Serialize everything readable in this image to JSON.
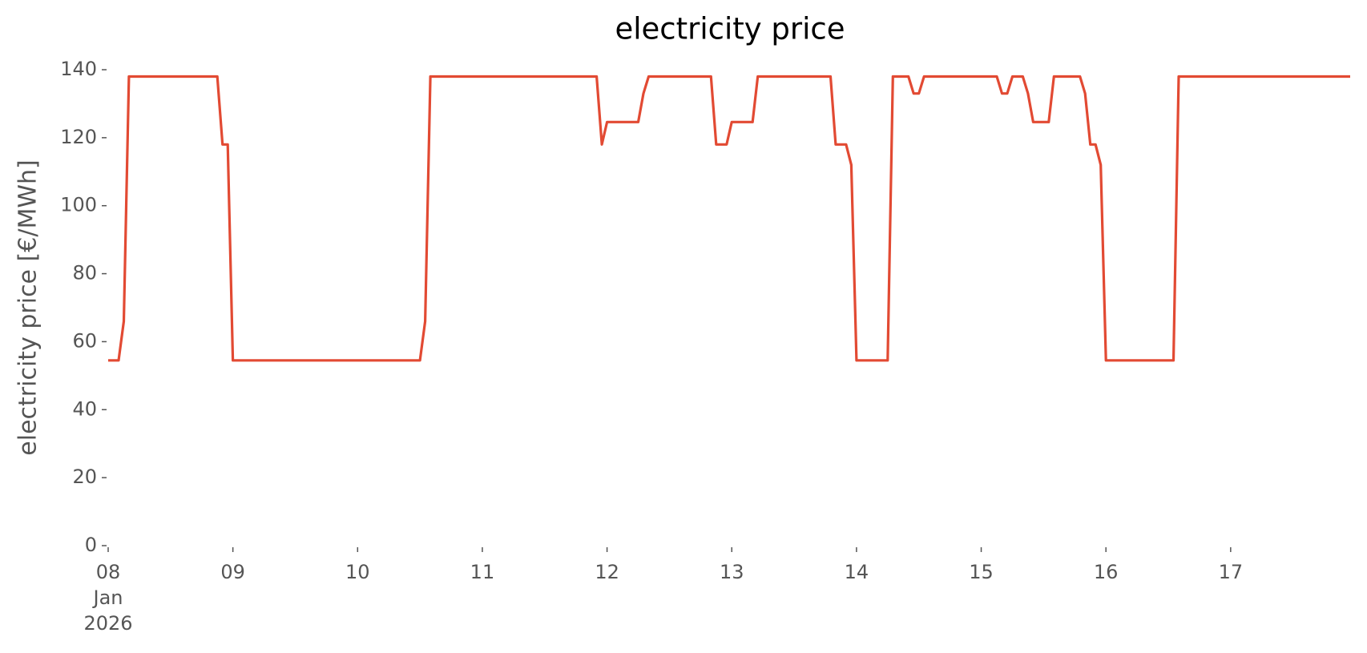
{
  "chart_data": {
    "type": "line",
    "title": "electricity price",
    "ylabel": "electricity price [€/MWh]",
    "x": [
      0,
      2,
      3,
      4,
      21,
      22,
      23,
      24,
      60,
      61,
      62,
      94,
      95,
      96,
      102,
      103,
      104,
      116,
      117,
      119,
      120,
      124,
      125,
      139,
      140,
      142,
      143,
      144,
      150,
      151,
      154,
      155,
      156,
      157,
      171,
      172,
      173,
      174,
      176,
      177,
      178,
      181,
      182,
      187,
      188,
      189,
      190,
      191,
      192,
      205,
      206,
      239
    ],
    "series": [
      {
        "name": "electricity price",
        "color": "#e24a33",
        "values": [
          54.5,
          54.5,
          66,
          138,
          138,
          118,
          118,
          54.5,
          54.5,
          66,
          138,
          138,
          118,
          124.6,
          124.6,
          133,
          138,
          138,
          118,
          118,
          124.6,
          124.6,
          138,
          138,
          118,
          118,
          112,
          54.5,
          54.5,
          138,
          138,
          133,
          133,
          138,
          138,
          133,
          133,
          138,
          138,
          133,
          124.6,
          124.6,
          138,
          138,
          133,
          118,
          118,
          112,
          54.5,
          54.5,
          138,
          138
        ]
      }
    ],
    "xlim": [
      0,
      239
    ],
    "xticks": [
      {
        "value": 0,
        "label": "08"
      },
      {
        "value": 24,
        "label": "09"
      },
      {
        "value": 48,
        "label": "10"
      },
      {
        "value": 72,
        "label": "11"
      },
      {
        "value": 96,
        "label": "12"
      },
      {
        "value": 120,
        "label": "13"
      },
      {
        "value": 144,
        "label": "14"
      },
      {
        "value": 168,
        "label": "15"
      },
      {
        "value": 192,
        "label": "16"
      },
      {
        "value": 216,
        "label": "17"
      }
    ],
    "xtick_sublabels": [
      "Jan",
      "2026"
    ],
    "ylim": [
      0,
      140
    ],
    "yticks": [
      0,
      20,
      40,
      60,
      80,
      100,
      120,
      140
    ],
    "grid": false
  }
}
